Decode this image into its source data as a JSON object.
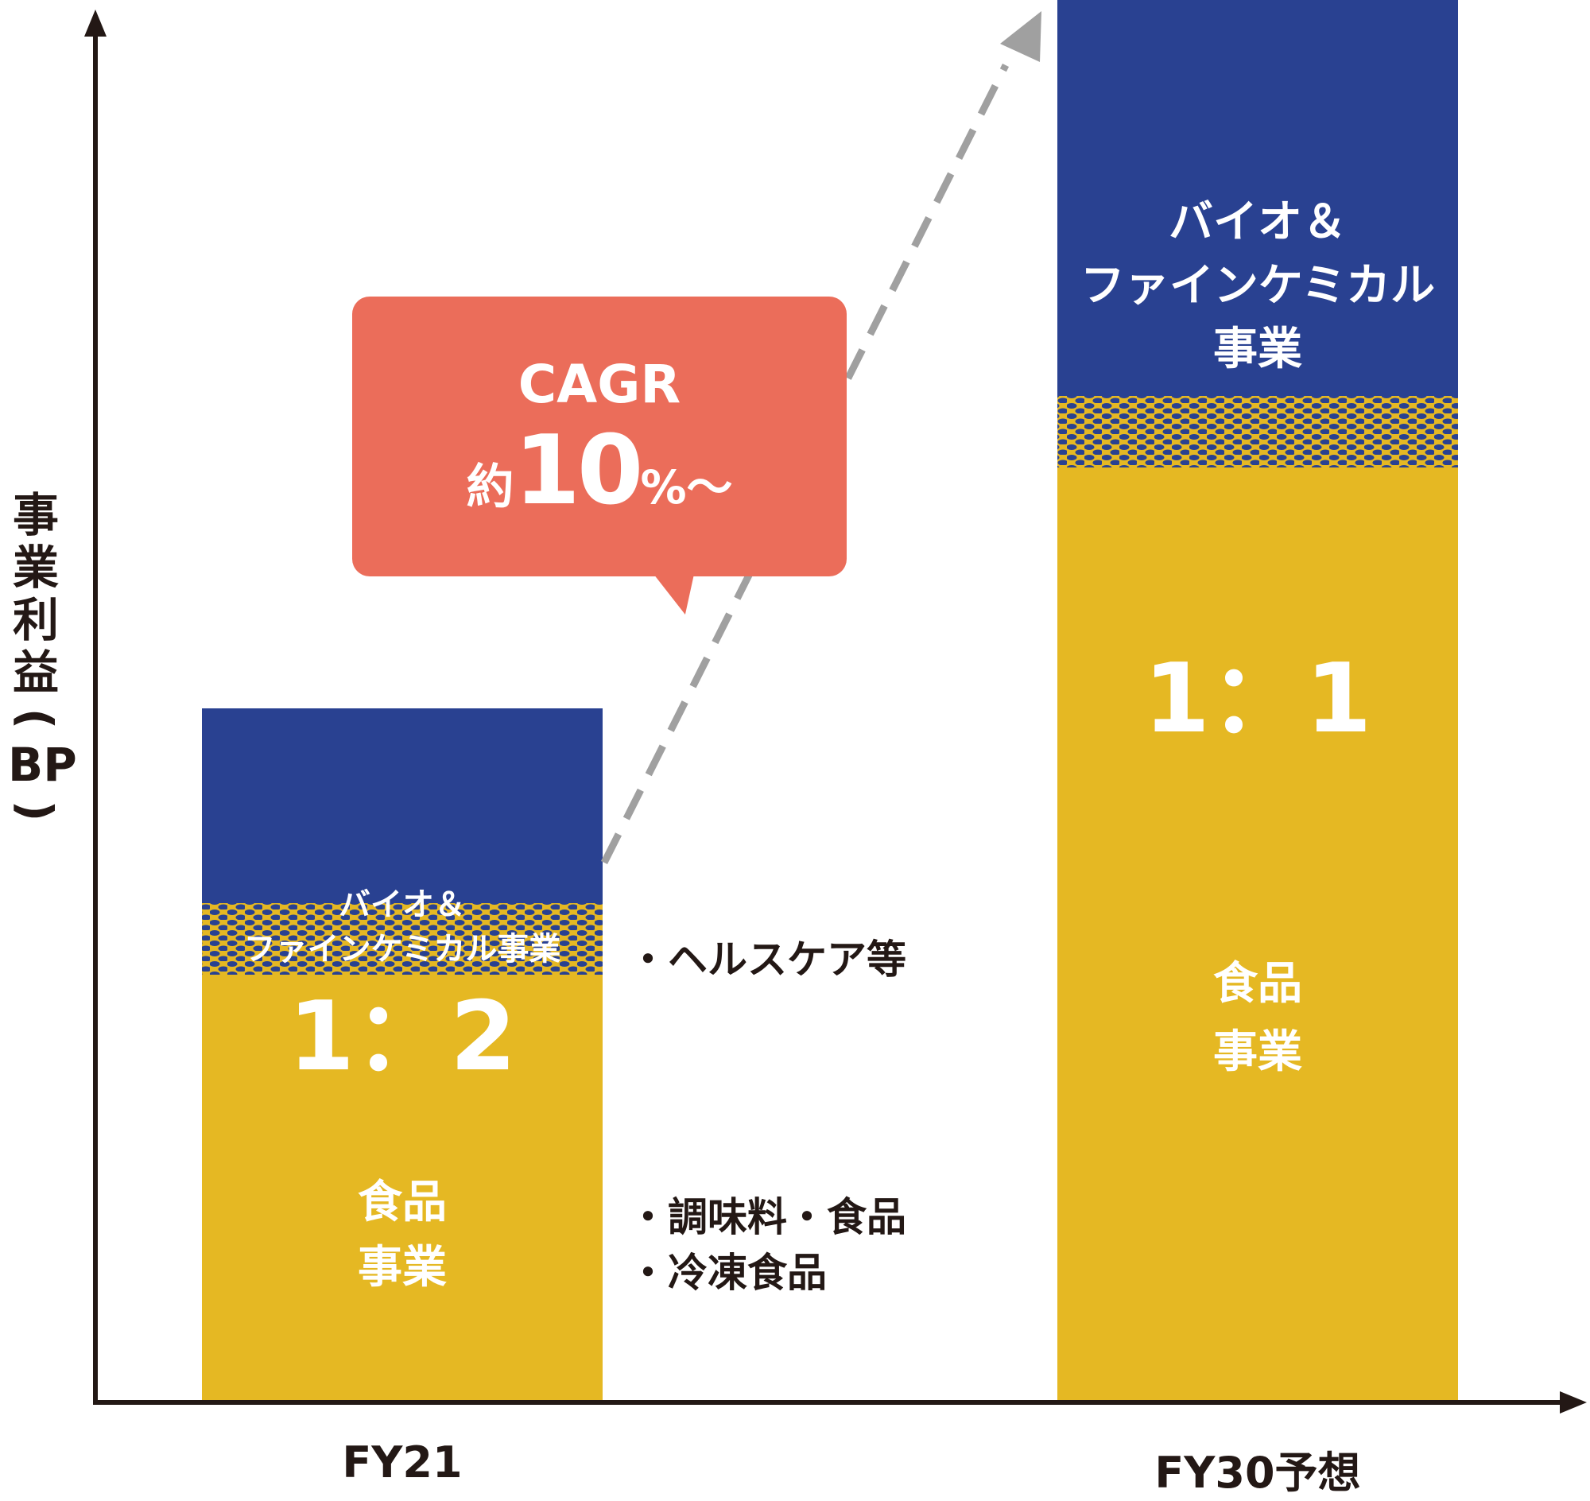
{
  "chart_data": {
    "type": "bar",
    "stacked": true,
    "categories": [
      "FY21",
      "FY30予想"
    ],
    "ylabel": "事業利益(BP)",
    "series": [
      {
        "name": "食品事業",
        "color": "#e5b823",
        "values": [
          2,
          4.2
        ]
      },
      {
        "name": "バイオ＆ファインケミカル事業",
        "color": "#294191",
        "values": [
          1,
          4.2
        ]
      }
    ],
    "ratios": [
      "1：2",
      "1：1"
    ],
    "annotation": {
      "title": "CAGR",
      "prefix": "約",
      "number": "10",
      "suffix": "%〜"
    }
  },
  "labels": {
    "ylabel_chars": [
      "事",
      "業",
      "利",
      "益"
    ],
    "ylabel_open": "(",
    "ylabel_bp": "BP",
    "ylabel_close": ")",
    "x_fy21": "FY21",
    "x_fy30": "FY30予想",
    "fy21_bio_line1": "バイオ＆",
    "fy21_bio_line2": "ファインケミカル事業",
    "fy21_ratio": "1：2",
    "fy21_food_line1": "食品",
    "fy21_food_line2": "事業",
    "fy30_bio_line1": "バイオ＆",
    "fy30_bio_line2": "ファインケミカル",
    "fy30_bio_line3": "事業",
    "fy30_ratio": "1：1",
    "fy30_food_line1": "食品",
    "fy30_food_line2": "事業",
    "bullet_bio": "・ヘルスケア等",
    "bullet_food1": "・調味料・食品",
    "bullet_food2": "・冷凍食品"
  },
  "colors": {
    "food": "#e5b823",
    "bio": "#294191",
    "callout": "#eb6d5a",
    "axis": "#231815",
    "trend": "#a0a0a0"
  }
}
